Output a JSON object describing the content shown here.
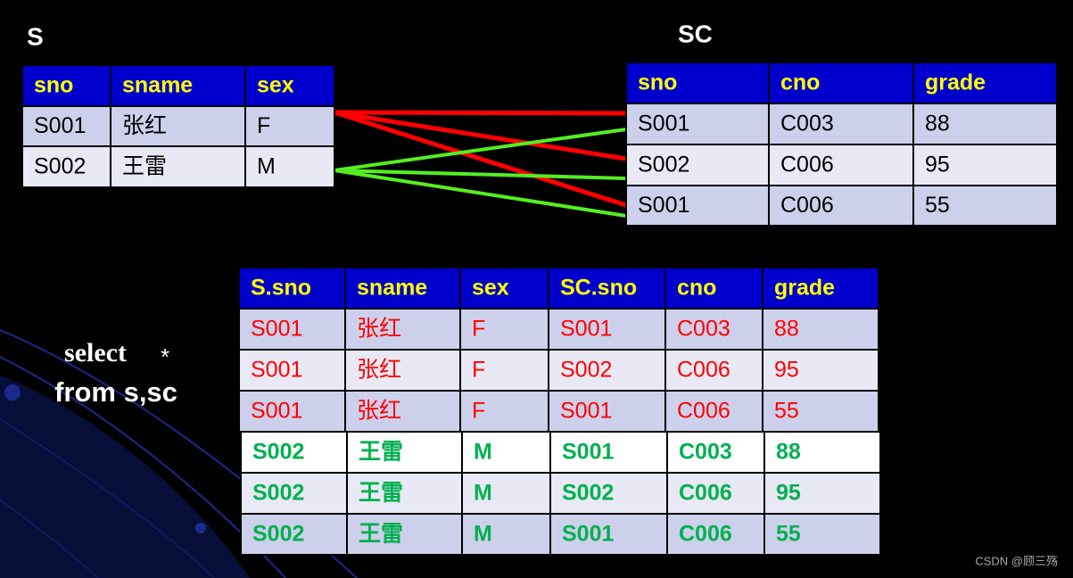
{
  "s_table": {
    "title": "S",
    "header": [
      "sno",
      "sname",
      "sex"
    ],
    "rows": [
      [
        "S001",
        "张红",
        "F"
      ],
      [
        "S002",
        "王雷",
        "M"
      ]
    ]
  },
  "sc_table": {
    "title": "SC",
    "header": [
      "sno",
      "cno",
      "grade"
    ],
    "rows": [
      [
        "S001",
        "C003",
        "88"
      ],
      [
        "S002",
        "C006",
        "95"
      ],
      [
        "S001",
        "C006",
        "55"
      ]
    ]
  },
  "query": [
    "select",
    "*",
    "from s,sc"
  ],
  "result_table": {
    "header": [
      "S.sno",
      "sname",
      "sex",
      "SC.sno",
      "cno",
      "grade"
    ],
    "rows": [
      [
        "S001",
        "张红",
        "F",
        "S001",
        "C003",
        "88"
      ],
      [
        "S001",
        "张红",
        "F",
        "S002",
        "C006",
        "95"
      ],
      [
        "S001",
        "张红",
        "F",
        "S001",
        "C006",
        "55"
      ],
      [
        "S002",
        "王雷",
        "M",
        "S001",
        "C003",
        "88"
      ],
      [
        "S002",
        "王雷",
        "M",
        "S002",
        "C006",
        "95"
      ],
      [
        "S002",
        "王雷",
        "M",
        "S001",
        "C006",
        "55"
      ]
    ]
  },
  "watermark": "CSDN @顾三殇"
}
